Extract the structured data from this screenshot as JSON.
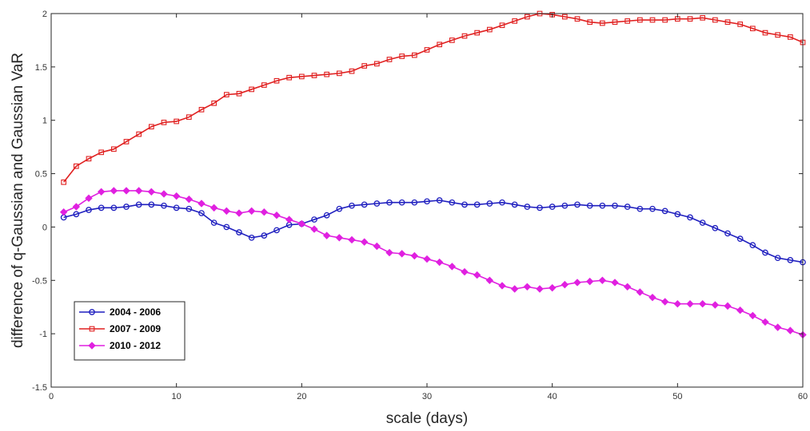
{
  "chart_data": {
    "type": "line",
    "title": "",
    "xlabel": "scale (days)",
    "ylabel": "difference of q-Gaussian and Gaussian VaR",
    "xlim": [
      0,
      60
    ],
    "ylim": [
      -1.5,
      2
    ],
    "xticks": [
      "0",
      "10",
      "20",
      "30",
      "40",
      "50",
      "60"
    ],
    "yticks": [
      "-1.5",
      "-1",
      "-0.5",
      "0",
      "0.5",
      "1",
      "1.5",
      "2"
    ],
    "grid": false,
    "legend_position": "bottom-left",
    "x": [
      1,
      2,
      3,
      4,
      5,
      6,
      7,
      8,
      9,
      10,
      11,
      12,
      13,
      14,
      15,
      16,
      17,
      18,
      19,
      20,
      21,
      22,
      23,
      24,
      25,
      26,
      27,
      28,
      29,
      30,
      31,
      32,
      33,
      34,
      35,
      36,
      37,
      38,
      39,
      40,
      41,
      42,
      43,
      44,
      45,
      46,
      47,
      48,
      49,
      50,
      51,
      52,
      53,
      54,
      55,
      56,
      57,
      58,
      59,
      60
    ],
    "series": [
      {
        "name": "2004 - 2006",
        "color": "#1f1fbf",
        "marker": "circle",
        "values": [
          0.09,
          0.12,
          0.16,
          0.18,
          0.18,
          0.19,
          0.21,
          0.21,
          0.2,
          0.18,
          0.17,
          0.13,
          0.04,
          0.0,
          -0.05,
          -0.1,
          -0.08,
          -0.03,
          0.02,
          0.03,
          0.07,
          0.11,
          0.17,
          0.2,
          0.21,
          0.22,
          0.23,
          0.23,
          0.23,
          0.24,
          0.25,
          0.23,
          0.21,
          0.21,
          0.22,
          0.23,
          0.21,
          0.19,
          0.18,
          0.19,
          0.2,
          0.21,
          0.2,
          0.2,
          0.2,
          0.19,
          0.17,
          0.17,
          0.15,
          0.12,
          0.09,
          0.04,
          -0.01,
          -0.06,
          -0.11,
          -0.17,
          -0.24,
          -0.29,
          -0.31,
          -0.33
        ]
      },
      {
        "name": "2007 - 2009",
        "color": "#e02020",
        "marker": "square",
        "values": [
          0.42,
          0.57,
          0.64,
          0.7,
          0.73,
          0.8,
          0.87,
          0.94,
          0.98,
          0.99,
          1.03,
          1.1,
          1.16,
          1.24,
          1.25,
          1.29,
          1.33,
          1.37,
          1.4,
          1.41,
          1.42,
          1.43,
          1.44,
          1.46,
          1.51,
          1.53,
          1.57,
          1.6,
          1.61,
          1.66,
          1.71,
          1.75,
          1.79,
          1.82,
          1.85,
          1.89,
          1.93,
          1.97,
          2.0,
          1.99,
          1.97,
          1.95,
          1.92,
          1.91,
          1.92,
          1.93,
          1.94,
          1.94,
          1.94,
          1.95,
          1.95,
          1.96,
          1.94,
          1.92,
          1.9,
          1.86,
          1.82,
          1.8,
          1.78,
          1.73
        ]
      },
      {
        "name": "2010 - 2012",
        "color": "#e020e0",
        "marker": "diamond",
        "values": [
          0.14,
          0.19,
          0.27,
          0.33,
          0.34,
          0.34,
          0.34,
          0.33,
          0.31,
          0.29,
          0.26,
          0.22,
          0.18,
          0.15,
          0.13,
          0.15,
          0.14,
          0.11,
          0.07,
          0.03,
          -0.02,
          -0.08,
          -0.1,
          -0.12,
          -0.14,
          -0.18,
          -0.24,
          -0.25,
          -0.27,
          -0.3,
          -0.33,
          -0.37,
          -0.42,
          -0.45,
          -0.5,
          -0.55,
          -0.58,
          -0.56,
          -0.58,
          -0.57,
          -0.54,
          -0.52,
          -0.51,
          -0.5,
          -0.52,
          -0.56,
          -0.61,
          -0.66,
          -0.7,
          -0.72,
          -0.72,
          -0.72,
          -0.73,
          -0.74,
          -0.78,
          -0.83,
          -0.89,
          -0.94,
          -0.97,
          -1.01
        ]
      }
    ]
  }
}
